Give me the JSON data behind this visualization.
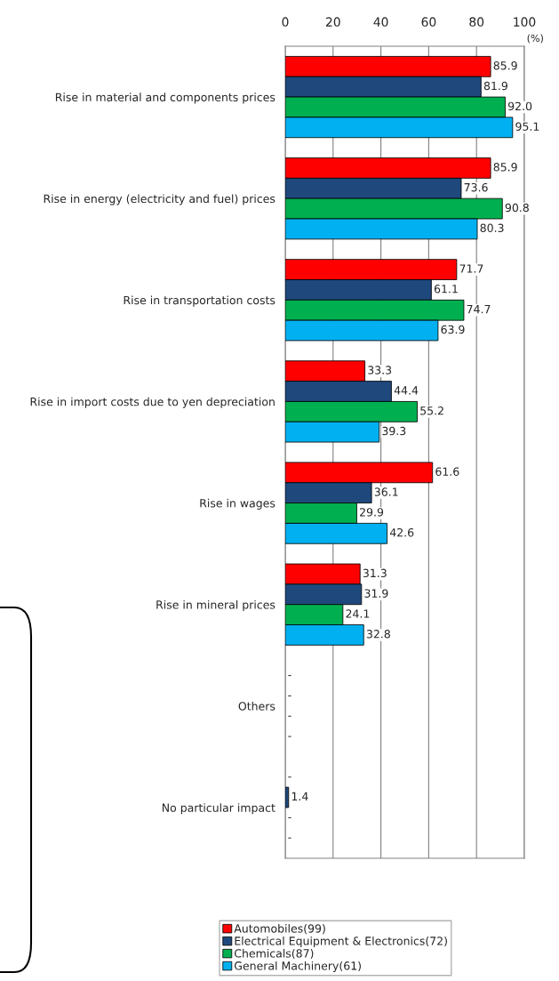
{
  "chart_data": {
    "type": "bar",
    "orientation": "horizontal",
    "xlabel": "(%)",
    "categories": [
      "Rise in material and components prices",
      "Rise in energy (electricity and fuel) prices",
      "Rise in transportation costs",
      "Rise in import costs due to yen depreciation",
      "Rise in wages",
      "Rise in mineral prices",
      "Others",
      "No particular impact"
    ],
    "series": [
      {
        "name": "Automobiles(99)",
        "color": "#ff0000",
        "values": [
          85.9,
          85.9,
          71.7,
          33.3,
          61.6,
          31.3,
          null,
          null
        ],
        "value_labels": [
          "85.9",
          "85.9",
          "71.7",
          "33.3",
          "61.6",
          "31.3",
          "-",
          "-"
        ]
      },
      {
        "name": "Electrical Equipment & Electronics(72)",
        "color": "#1f497d",
        "values": [
          81.9,
          73.6,
          61.1,
          44.4,
          36.1,
          31.9,
          null,
          1.4
        ],
        "value_labels": [
          "81.9",
          "73.6",
          "61.1",
          "44.4",
          "36.1",
          "31.9",
          "-",
          "1.4"
        ]
      },
      {
        "name": "Chemicals(87)",
        "color": "#00b050",
        "values": [
          92.0,
          90.8,
          74.7,
          55.2,
          29.9,
          24.1,
          null,
          null
        ],
        "value_labels": [
          "92.0",
          "90.8",
          "74.7",
          "55.2",
          "29.9",
          "24.1",
          "-",
          "-"
        ]
      },
      {
        "name": "General Machinery(61)",
        "color": "#00b0f0",
        "values": [
          95.1,
          80.3,
          63.9,
          39.3,
          42.6,
          32.8,
          null,
          null
        ],
        "value_labels": [
          "95.1",
          "80.3",
          "63.9",
          "39.3",
          "42.6",
          "32.8",
          "-",
          "-"
        ]
      }
    ],
    "xlim": [
      0,
      100
    ],
    "xticks": [
      0,
      20,
      40,
      60,
      80,
      100
    ],
    "grid": "x",
    "legend": "bottom"
  }
}
